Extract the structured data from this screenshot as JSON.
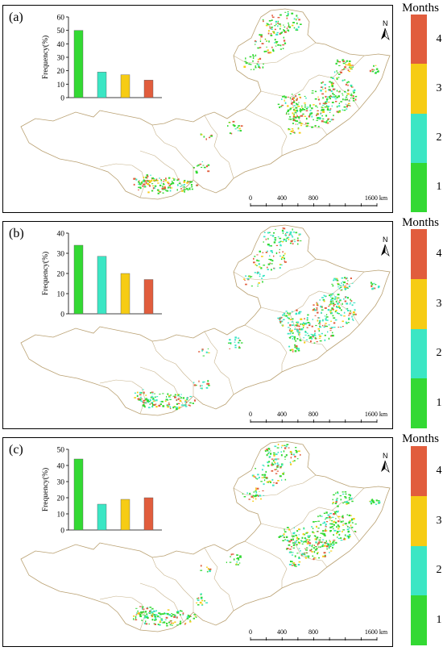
{
  "chart_data": [
    {
      "type": "bar",
      "panel_label": "(a)",
      "ylabel": "Frequency(%)",
      "ylim": [
        0,
        60
      ],
      "yticks": [
        0,
        10,
        20,
        30,
        40,
        50,
        60
      ],
      "categories": [
        "1",
        "2",
        "3",
        "4"
      ],
      "values": [
        50,
        19,
        17,
        13
      ],
      "map_label": "Months",
      "scalebar_ticks": [
        "0",
        "400",
        "800",
        "1600 km"
      ]
    },
    {
      "type": "bar",
      "panel_label": "(b)",
      "ylabel": "Frequency(%)",
      "ylim": [
        0,
        40
      ],
      "yticks": [
        0,
        10,
        20,
        30,
        40
      ],
      "categories": [
        "1",
        "2",
        "3",
        "4"
      ],
      "values": [
        34,
        28.5,
        20,
        17
      ],
      "map_label": "Months",
      "scalebar_ticks": [
        "0",
        "400",
        "800",
        "1600 km"
      ]
    },
    {
      "type": "bar",
      "panel_label": "(c)",
      "ylabel": "Frequency(%)",
      "ylim": [
        0,
        50
      ],
      "yticks": [
        0,
        10,
        20,
        30,
        40,
        50
      ],
      "categories": [
        "1",
        "2",
        "3",
        "4"
      ],
      "values": [
        44,
        16,
        19,
        20
      ],
      "map_label": "Months",
      "scalebar_ticks": [
        "0",
        "400",
        "800",
        "1600 km"
      ]
    }
  ],
  "legend": {
    "title": "Months",
    "items": [
      "4",
      "3",
      "2",
      "1"
    ],
    "colors": [
      "#e15d3d",
      "#f6cc14",
      "#3be6c4",
      "#33d933"
    ]
  },
  "north_label": "N",
  "colors": {
    "bar": [
      "#33d933",
      "#3be6c4",
      "#f6cc14",
      "#e15d3d"
    ],
    "map_outline": "#b9a071"
  }
}
